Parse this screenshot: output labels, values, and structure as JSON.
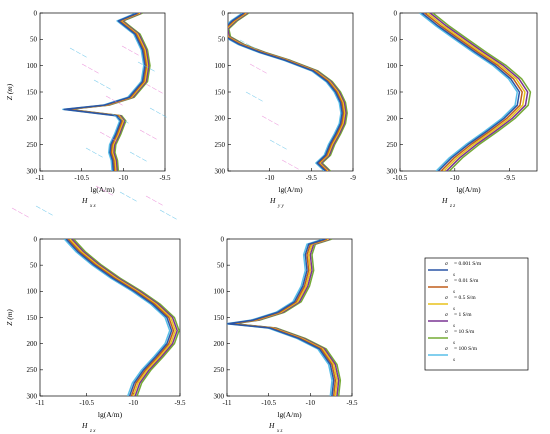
{
  "colors": [
    "#2a55a6",
    "#c15e1b",
    "#e8c21c",
    "#7a3593",
    "#75ab35",
    "#58bfe8",
    "#e87fd4"
  ],
  "legend": {
    "entries": [
      {
        "sym": "σ",
        "sub": "s",
        "text": "= 0.001 S/m"
      },
      {
        "sym": "σ",
        "sub": "s",
        "text": "= 0.01 S/m"
      },
      {
        "sym": "σ",
        "sub": "s",
        "text": "= 0.5 S/m"
      },
      {
        "sym": "σ",
        "sub": "s",
        "text": "= 1 S/m"
      },
      {
        "sym": "σ",
        "sub": "s",
        "text": "= 10 S/m"
      },
      {
        "sym": "σ",
        "sub": "s",
        "text": "= 100 S/m"
      }
    ]
  },
  "chart_data": [
    {
      "type": "line",
      "id": "hxx",
      "ylabel": "Z  (m)",
      "xlabel": "lg(A/m)",
      "subtitle": "H",
      "subtitle_sub": "x x",
      "xlim": [
        -11,
        -9.5
      ],
      "ylim": [
        0,
        300
      ],
      "xticks": [
        -11,
        -10.5,
        -10,
        -9.5
      ],
      "xtick_labels": [
        "-11",
        "-10.5",
        "-10",
        "-9.5"
      ],
      "yticks": [
        0,
        50,
        100,
        150,
        200,
        250,
        300
      ],
      "ytick_labels": [
        "0",
        "50",
        "100",
        "150",
        "200",
        "250",
        "300"
      ],
      "z": [
        0,
        15,
        40,
        70,
        100,
        130,
        160,
        175,
        183,
        195,
        205,
        230,
        250,
        265,
        280,
        300
      ],
      "base": [
        -9.8,
        -10.03,
        -9.83,
        -9.74,
        -9.71,
        -9.74,
        -9.9,
        -10.2,
        -10.68,
        -10.05,
        -10.0,
        -10.06,
        -10.12,
        -10.13,
        -10.1,
        -10.09
      ],
      "offsets": [
        -0.03,
        -0.015,
        0,
        0.015,
        0.03,
        -0.045
      ],
      "series": [
        {
          "name": "σs = 0.001 S/m"
        },
        {
          "name": "σs = 0.01 S/m"
        },
        {
          "name": "σs = 0.5 S/m"
        },
        {
          "name": "σs = 1 S/m"
        },
        {
          "name": "σs = 10 S/m"
        },
        {
          "name": "σs = 100 S/m"
        }
      ]
    },
    {
      "type": "line",
      "id": "hyy",
      "ylabel": "",
      "xlabel": "lg(A/m)",
      "subtitle": "H",
      "subtitle_sub": "y y",
      "xlim": [
        -10.5,
        -9
      ],
      "ylim": [
        0,
        300
      ],
      "xticks": [
        -10.5,
        -10,
        -9.5,
        -9
      ],
      "xtick_labels": [
        "",
        "-10",
        "-9.5",
        "-9"
      ],
      "yticks": [
        0,
        50,
        100,
        150,
        200,
        250,
        300
      ],
      "ytick_labels": [
        "0",
        "50",
        "100",
        "150",
        "200",
        "250",
        "300"
      ],
      "z": [
        0,
        15,
        30,
        45,
        60,
        75,
        90,
        110,
        130,
        150,
        170,
        190,
        210,
        230,
        250,
        270,
        285,
        300
      ],
      "base": [
        -10.28,
        -10.42,
        -10.52,
        -10.5,
        -10.33,
        -10.08,
        -9.78,
        -9.45,
        -9.28,
        -9.18,
        -9.12,
        -9.1,
        -9.12,
        -9.18,
        -9.25,
        -9.3,
        -9.4,
        -9.3
      ],
      "offsets": [
        -0.03,
        -0.015,
        0,
        0.015,
        0.03,
        -0.045
      ],
      "series": [
        {
          "name": "σs = 0.001 S/m"
        },
        {
          "name": "σs = 0.01 S/m"
        },
        {
          "name": "σs = 0.5 S/m"
        },
        {
          "name": "σs = 1 S/m"
        },
        {
          "name": "σs = 10 S/m"
        },
        {
          "name": "σs = 100 S/m"
        }
      ]
    },
    {
      "type": "line",
      "id": "hzz",
      "ylabel": "",
      "xlabel": "lg(A/m)",
      "subtitle": "H",
      "subtitle_sub": "z z",
      "xlim": [
        -10.5,
        -9.25
      ],
      "ylim": [
        0,
        300
      ],
      "xticks": [
        -10.5,
        -10,
        -9.5
      ],
      "xtick_labels": [
        "-10.5",
        "-10",
        "-9.5"
      ],
      "yticks": [
        0,
        50,
        100,
        150,
        200,
        250,
        300
      ],
      "ytick_labels": [
        "0",
        "50",
        "100",
        "150",
        "200",
        "250",
        "300"
      ],
      "z": [
        0,
        25,
        50,
        75,
        100,
        125,
        150,
        175,
        200,
        225,
        250,
        275,
        300
      ],
      "base": [
        -10.25,
        -10.1,
        -9.93,
        -9.76,
        -9.58,
        -9.44,
        -9.36,
        -9.38,
        -9.5,
        -9.66,
        -9.83,
        -9.98,
        -10.1
      ],
      "offsets": [
        -0.05,
        -0.025,
        0,
        0.025,
        0.05,
        -0.07
      ],
      "series": [
        {
          "name": "σs = 0.001 S/m"
        },
        {
          "name": "σs = 0.01 S/m"
        },
        {
          "name": "σs = 0.5 S/m"
        },
        {
          "name": "σs = 1 S/m"
        },
        {
          "name": "σs = 10 S/m"
        },
        {
          "name": "σs = 100 S/m"
        }
      ]
    },
    {
      "type": "line",
      "id": "hzx",
      "ylabel": "Z  (m)",
      "xlabel": "lg(A/m)",
      "subtitle": "H",
      "subtitle_sub": "z x",
      "xlim": [
        -11,
        -9.5
      ],
      "ylim": [
        0,
        300
      ],
      "xticks": [
        -11,
        -10.5,
        -10,
        -9.5
      ],
      "xtick_labels": [
        "-11",
        "-10.5",
        "-10",
        "-9.5"
      ],
      "yticks": [
        0,
        50,
        100,
        150,
        200,
        250,
        300
      ],
      "ytick_labels": [
        "0",
        "50",
        "100",
        "150",
        "200",
        "250",
        "300"
      ],
      "z": [
        0,
        25,
        50,
        75,
        100,
        125,
        150,
        175,
        200,
        225,
        250,
        275,
        300
      ],
      "base": [
        -10.68,
        -10.55,
        -10.38,
        -10.18,
        -9.95,
        -9.75,
        -9.6,
        -9.55,
        -9.6,
        -9.72,
        -9.85,
        -9.95,
        -10.0
      ],
      "offsets": [
        -0.04,
        -0.02,
        0,
        0.02,
        0.04,
        -0.06
      ],
      "series": [
        {
          "name": "σs = 0.001 S/m"
        },
        {
          "name": "σs = 0.01 S/m"
        },
        {
          "name": "σs = 0.5 S/m"
        },
        {
          "name": "σs = 1 S/m"
        },
        {
          "name": "σs = 10 S/m"
        },
        {
          "name": "σs = 100 S/m"
        }
      ]
    },
    {
      "type": "line",
      "id": "hxz",
      "ylabel": "",
      "xlabel": "lg(A/m)",
      "subtitle": "H",
      "subtitle_sub": "x z",
      "xlim": [
        -11,
        -9.5
      ],
      "ylim": [
        0,
        300
      ],
      "xticks": [
        -11,
        -10.5,
        -10,
        -9.5
      ],
      "xtick_labels": [
        "-11",
        "-10.5",
        "-10",
        "-9.5"
      ],
      "yticks": [
        0,
        50,
        100,
        150,
        200,
        250,
        300
      ],
      "ytick_labels": [
        "0",
        "50",
        "100",
        "150",
        "200",
        "250",
        "300"
      ],
      "z": [
        0,
        10,
        30,
        60,
        90,
        120,
        140,
        155,
        162,
        170,
        190,
        210,
        240,
        270,
        300
      ],
      "base": [
        -9.78,
        -9.98,
        -10.02,
        -10.0,
        -10.05,
        -10.15,
        -10.35,
        -10.65,
        -10.95,
        -10.45,
        -10.1,
        -9.85,
        -9.72,
        -9.68,
        -9.7
      ],
      "offsets": [
        -0.04,
        -0.02,
        0,
        0.02,
        0.04,
        -0.06
      ],
      "series": [
        {
          "name": "σs = 0.001 S/m"
        },
        {
          "name": "σs = 0.01 S/m"
        },
        {
          "name": "σs = 0.5 S/m"
        },
        {
          "name": "σs = 1 S/m"
        },
        {
          "name": "σs = 10 S/m"
        },
        {
          "name": "σs = 100 S/m"
        }
      ]
    }
  ]
}
